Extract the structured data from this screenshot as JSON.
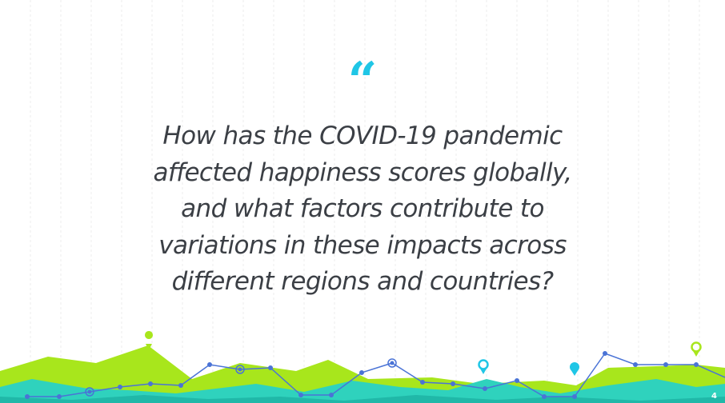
{
  "slide": {
    "quote_mark": "“",
    "quote_lines": [
      "How has the COVID-19 pandemic",
      "affected happiness scores globally,",
      "and what factors contribute to",
      "variations in these impacts across",
      "different regions and countries?"
    ],
    "page_number": "4"
  },
  "colors": {
    "accent_cyan": "#1fc6e6",
    "lime": "#a8e61c",
    "teal": "#2fd2bd",
    "line_blue": "#4a73d6",
    "text": "#3b3f45"
  },
  "icons": [
    "location-pin-icon"
  ]
}
